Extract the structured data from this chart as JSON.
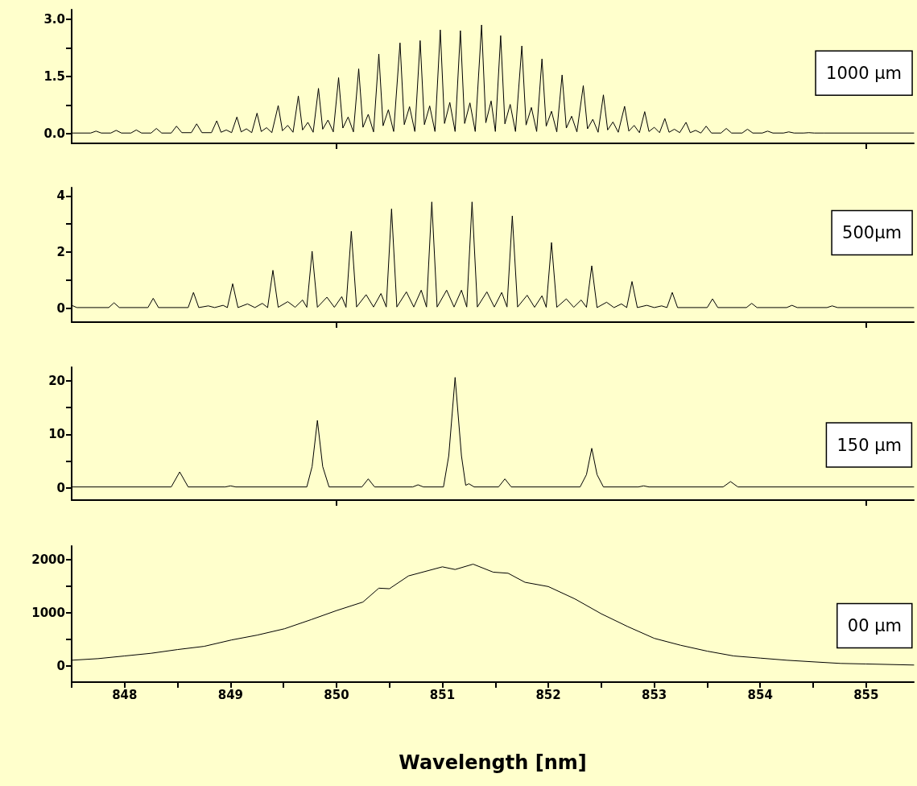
{
  "chart_data": [
    {
      "type": "line",
      "color": "#000000",
      "xlim": [
        847.5,
        855.45
      ],
      "xticks": [
        850,
        855
      ],
      "ylim": [
        -0.25,
        3.25
      ],
      "yticks": [
        {
          "value": 0,
          "label": "0.0"
        },
        {
          "value": 0.75,
          "label": null
        },
        {
          "value": 1.5,
          "label": "1.5"
        },
        {
          "value": 2.25,
          "label": null
        },
        {
          "value": 3,
          "label": "3.0"
        }
      ],
      "tick_labels": "y",
      "annotations": [
        "1000 μm"
      ],
      "x": [
        847.5,
        847.68,
        847.73,
        847.78,
        847.87,
        847.92,
        847.97,
        848.06,
        848.11,
        848.16,
        848.25,
        848.3,
        848.35,
        848.44,
        848.49,
        848.54,
        848.63,
        848.68,
        848.73,
        848.82,
        848.87,
        848.91,
        848.96,
        849.01,
        849.06,
        849.1,
        849.15,
        849.2,
        849.25,
        849.29,
        849.34,
        849.39,
        849.45,
        849.49,
        849.54,
        849.59,
        849.64,
        849.68,
        849.73,
        849.78,
        849.83,
        849.87,
        849.92,
        849.97,
        850.02,
        850.06,
        850.11,
        850.16,
        850.21,
        850.25,
        850.3,
        850.35,
        850.4,
        850.44,
        850.49,
        850.54,
        850.6,
        850.64,
        850.69,
        850.74,
        850.79,
        850.83,
        850.88,
        850.93,
        850.98,
        851.02,
        851.07,
        851.12,
        851.17,
        851.21,
        851.26,
        851.31,
        851.37,
        851.41,
        851.46,
        851.5,
        851.55,
        851.59,
        851.64,
        851.69,
        851.75,
        851.79,
        851.84,
        851.89,
        851.94,
        851.98,
        852.03,
        852.08,
        852.13,
        852.17,
        852.22,
        852.27,
        852.33,
        852.37,
        852.42,
        852.47,
        852.52,
        852.56,
        852.61,
        852.66,
        852.72,
        852.76,
        852.81,
        852.86,
        852.91,
        852.95,
        853,
        853.05,
        853.1,
        853.14,
        853.19,
        853.24,
        853.3,
        853.34,
        853.39,
        853.44,
        853.49,
        853.54,
        853.63,
        853.68,
        853.73,
        853.83,
        853.88,
        853.93,
        854.02,
        854.07,
        854.12,
        854.22,
        854.27,
        854.32,
        854.41,
        854.46,
        854.51,
        854.6,
        855.45
      ],
      "values": [
        0.02,
        0.02,
        0.07,
        0.02,
        0.02,
        0.09,
        0.02,
        0.02,
        0.1,
        0.02,
        0.02,
        0.14,
        0.02,
        0.02,
        0.2,
        0.03,
        0.03,
        0.26,
        0.03,
        0.03,
        0.34,
        0.04,
        0.1,
        0.03,
        0.44,
        0.05,
        0.13,
        0.03,
        0.54,
        0.06,
        0.16,
        0.03,
        0.74,
        0.08,
        0.22,
        0.04,
        0.99,
        0.1,
        0.3,
        0.04,
        1.19,
        0.12,
        0.36,
        0.05,
        1.47,
        0.15,
        0.44,
        0.05,
        1.7,
        0.17,
        0.51,
        0.05,
        2.09,
        0.21,
        0.63,
        0.06,
        2.38,
        0.24,
        0.71,
        0.06,
        2.44,
        0.24,
        0.73,
        0.06,
        2.72,
        0.27,
        0.82,
        0.06,
        2.7,
        0.27,
        0.81,
        0.06,
        2.85,
        0.29,
        0.86,
        0.06,
        2.57,
        0.26,
        0.77,
        0.06,
        2.3,
        0.23,
        0.69,
        0.06,
        1.96,
        0.2,
        0.59,
        0.05,
        1.54,
        0.15,
        0.46,
        0.05,
        1.26,
        0.13,
        0.38,
        0.04,
        1.02,
        0.1,
        0.31,
        0.04,
        0.72,
        0.07,
        0.22,
        0.03,
        0.58,
        0.06,
        0.17,
        0.03,
        0.4,
        0.04,
        0.12,
        0.03,
        0.3,
        0.03,
        0.09,
        0.02,
        0.2,
        0.02,
        0.02,
        0.14,
        0.02,
        0.02,
        0.12,
        0.02,
        0.02,
        0.07,
        0.02,
        0.02,
        0.05,
        0.02,
        0.02,
        0.03,
        0.02,
        0.02,
        0.02
      ]
    },
    {
      "type": "line",
      "color": "#000000",
      "xlim": [
        847.5,
        855.45
      ],
      "xticks": [
        850,
        855
      ],
      "ylim": [
        -0.5,
        4.3
      ],
      "yticks": [
        0,
        {
          "value": 1,
          "label": null
        },
        2,
        {
          "value": 3,
          "label": null
        },
        4
      ],
      "tick_labels": "y",
      "annotations": [
        "500μm"
      ],
      "x": [
        847.5,
        847.55,
        847.85,
        847.9,
        847.95,
        848.22,
        848.27,
        848.32,
        848.6,
        848.65,
        848.7,
        848.79,
        848.85,
        848.93,
        848.97,
        849.02,
        849.07,
        849.16,
        849.23,
        849.3,
        849.35,
        849.4,
        849.45,
        849.54,
        849.61,
        849.68,
        849.72,
        849.77,
        849.82,
        849.91,
        849.98,
        850.05,
        850.09,
        850.14,
        850.19,
        850.28,
        850.35,
        850.42,
        850.47,
        850.52,
        850.57,
        850.66,
        850.73,
        850.8,
        850.85,
        850.9,
        850.95,
        851.04,
        851.11,
        851.18,
        851.23,
        851.28,
        851.33,
        851.42,
        851.49,
        851.56,
        851.61,
        851.66,
        851.71,
        851.8,
        851.87,
        851.94,
        851.98,
        852.03,
        852.08,
        852.17,
        852.24,
        852.31,
        852.36,
        852.41,
        852.46,
        852.55,
        852.62,
        852.69,
        852.74,
        852.79,
        852.84,
        852.93,
        853,
        853.07,
        853.12,
        853.17,
        853.22,
        853.5,
        853.55,
        853.6,
        853.87,
        853.92,
        853.97,
        854.25,
        854.3,
        854.35,
        854.63,
        854.68,
        854.73,
        855.45
      ],
      "values": [
        0.1,
        0.02,
        0.02,
        0.19,
        0.02,
        0.02,
        0.35,
        0.02,
        0.02,
        0.56,
        0.02,
        0.08,
        0.02,
        0.1,
        0.02,
        0.87,
        0.02,
        0.15,
        0.02,
        0.17,
        0.02,
        1.35,
        0.03,
        0.23,
        0.03,
        0.29,
        0.03,
        2.03,
        0.03,
        0.39,
        0.03,
        0.41,
        0.03,
        2.74,
        0.04,
        0.48,
        0.04,
        0.52,
        0.04,
        3.54,
        0.04,
        0.58,
        0.04,
        0.64,
        0.04,
        3.79,
        0.04,
        0.64,
        0.04,
        0.64,
        0.04,
        3.79,
        0.04,
        0.58,
        0.04,
        0.56,
        0.04,
        3.29,
        0.04,
        0.46,
        0.03,
        0.44,
        0.03,
        2.34,
        0.03,
        0.33,
        0.03,
        0.29,
        0.03,
        1.51,
        0.02,
        0.21,
        0.02,
        0.15,
        0.02,
        0.95,
        0.02,
        0.1,
        0.02,
        0.08,
        0.02,
        0.56,
        0.02,
        0.02,
        0.33,
        0.02,
        0.02,
        0.17,
        0.02,
        0.02,
        0.1,
        0.02,
        0.02,
        0.08,
        0.02,
        0.02
      ]
    },
    {
      "type": "line",
      "color": "#000000",
      "xlim": [
        847.5,
        855.45
      ],
      "xticks": [
        850,
        855
      ],
      "ylim": [
        -2.25,
        22.5
      ],
      "yticks": [
        0,
        {
          "value": 5,
          "label": null
        },
        10,
        {
          "value": 15,
          "label": null
        },
        20
      ],
      "tick_labels": "y",
      "annotations": [
        "150 μm"
      ],
      "x": [
        847.5,
        848.44,
        848.52,
        848.6,
        848.95,
        849,
        849.05,
        849.72,
        849.77,
        849.82,
        849.87,
        849.93,
        850.24,
        850.3,
        850.36,
        850.72,
        850.77,
        850.82,
        851.01,
        851.06,
        851.12,
        851.18,
        851.22,
        851.25,
        851.3,
        851.53,
        851.59,
        851.65,
        852.3,
        852.36,
        852.41,
        852.46,
        852.52,
        852.85,
        852.9,
        852.95,
        853.65,
        853.72,
        853.79,
        855.45
      ],
      "values": [
        0.2,
        0.2,
        3,
        0.2,
        0.2,
        0.4,
        0.2,
        0.2,
        4,
        12.6,
        4,
        0.2,
        0.2,
        1.7,
        0.2,
        0.2,
        0.6,
        0.2,
        0.2,
        6,
        20.6,
        6,
        0.5,
        0.8,
        0.2,
        0.2,
        1.7,
        0.2,
        0.2,
        2.5,
        7.4,
        2.5,
        0.2,
        0.2,
        0.4,
        0.2,
        0.2,
        1.2,
        0.2,
        0.2
      ]
    },
    {
      "type": "line",
      "color": "#000000",
      "xlim": [
        847.5,
        855.45
      ],
      "xticks": [
        {
          "value": 847.5,
          "label": null
        },
        848,
        {
          "value": 848.5,
          "label": null
        },
        849,
        {
          "value": 849.5,
          "label": null
        },
        850,
        {
          "value": 850.5,
          "label": null
        },
        851,
        {
          "value": 851.5,
          "label": null
        },
        852,
        {
          "value": 852.5,
          "label": null
        },
        853,
        {
          "value": 853.5,
          "label": null
        },
        854,
        {
          "value": 854.5,
          "label": null
        },
        855
      ],
      "ylim": [
        -300,
        2250
      ],
      "yticks": [
        0,
        {
          "value": 500,
          "label": null
        },
        1000,
        {
          "value": 1500,
          "label": null
        },
        2000
      ],
      "xlabel": "Wavelength [nm]",
      "annotations": [
        "00 μm"
      ],
      "x": [
        847.5,
        847.75,
        848,
        848.25,
        848.5,
        848.75,
        849.01,
        849.25,
        849.51,
        849.76,
        850,
        850.25,
        850.4,
        850.5,
        850.68,
        851,
        851.12,
        851.29,
        851.48,
        851.62,
        851.78,
        852,
        852.25,
        852.5,
        852.75,
        853,
        853.25,
        853.5,
        853.75,
        854,
        854.25,
        854.5,
        854.76,
        855,
        855.45
      ],
      "values": [
        110,
        140,
        190,
        240,
        310,
        370,
        490,
        580,
        700,
        870,
        1040,
        1200,
        1460,
        1450,
        1690,
        1860,
        1810,
        1910,
        1760,
        1740,
        1570,
        1490,
        1260,
        980,
        740,
        520,
        390,
        280,
        190,
        150,
        110,
        80,
        50,
        40,
        20
      ]
    }
  ]
}
